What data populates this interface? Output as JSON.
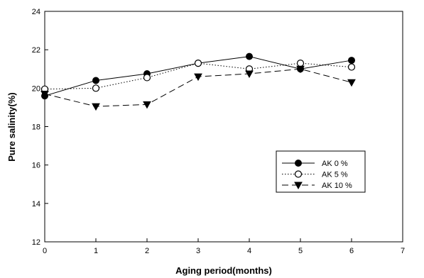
{
  "chart_data": {
    "type": "line",
    "xlabel": "Aging period(months)",
    "ylabel": "Pure salinity(%)",
    "xlim": [
      0,
      7
    ],
    "ylim": [
      12,
      24
    ],
    "x_ticks": [
      0,
      1,
      2,
      3,
      4,
      5,
      6,
      7
    ],
    "y_ticks": [
      12,
      14,
      16,
      18,
      20,
      22,
      24
    ],
    "grid": false,
    "legend_position": "lower-right",
    "series": [
      {
        "name": "AK 0 %",
        "marker": "filled-circle",
        "line_style": "solid",
        "x": [
          0,
          1,
          2,
          3,
          4,
          5,
          6
        ],
        "values": [
          19.6,
          20.4,
          20.75,
          21.3,
          21.65,
          21.0,
          21.45
        ]
      },
      {
        "name": "AK 5 %",
        "marker": "open-circle",
        "line_style": "dotted",
        "x": [
          0,
          1,
          2,
          3,
          4,
          5,
          6
        ],
        "values": [
          19.95,
          20.0,
          20.55,
          21.3,
          21.0,
          21.3,
          21.1
        ]
      },
      {
        "name": "AK 10 %",
        "marker": "filled-triangle-down",
        "line_style": "dashed",
        "x": [
          0,
          1,
          2,
          3,
          4,
          5,
          6
        ],
        "values": [
          19.7,
          19.05,
          19.15,
          20.6,
          20.75,
          21.0,
          20.3
        ]
      }
    ]
  }
}
